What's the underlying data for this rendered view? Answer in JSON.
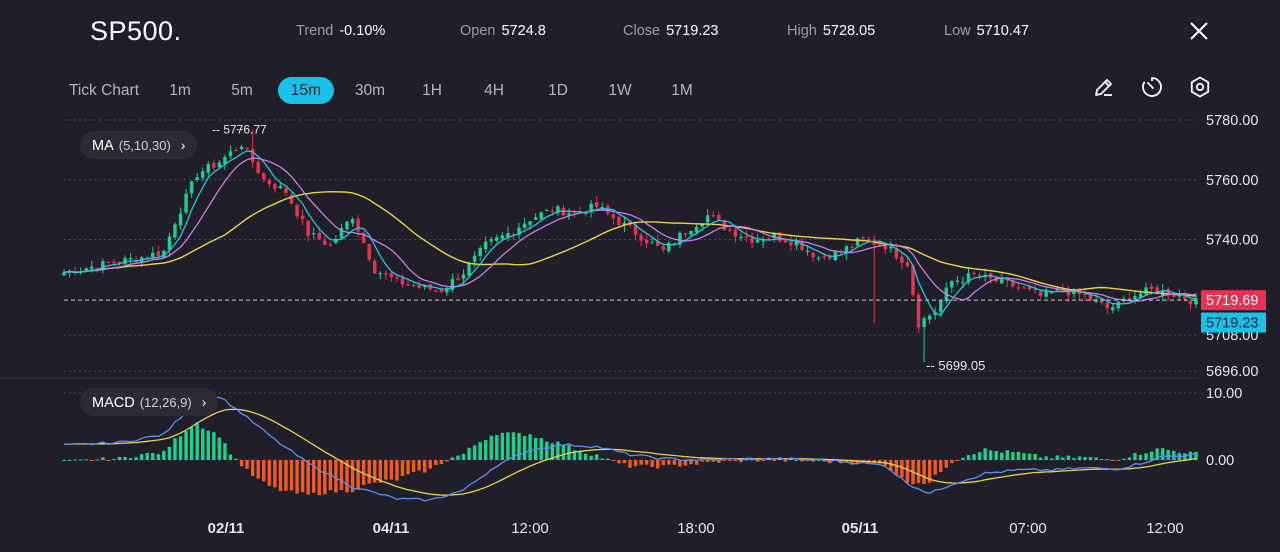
{
  "header": {
    "symbol": "SP500.",
    "stats": [
      {
        "label": "Trend",
        "value": "-0.10%"
      },
      {
        "label": "Open",
        "value": "5724.8"
      },
      {
        "label": "Close",
        "value": "5719.23"
      },
      {
        "label": "High",
        "value": "5728.05"
      },
      {
        "label": "Low",
        "value": "5710.47"
      }
    ],
    "close_icon": "close-icon"
  },
  "toolbar": {
    "timeframes": [
      "Tick Chart",
      "1m",
      "5m",
      "15m",
      "30m",
      "1H",
      "4H",
      "1D",
      "1W",
      "1M"
    ],
    "active": "15m",
    "tools": [
      "pencil-icon",
      "timer-icon",
      "settings-icon"
    ]
  },
  "indicators": {
    "ma": {
      "name": "MA",
      "params": "(5,10,30)"
    },
    "macd": {
      "name": "MACD",
      "params": "(12,26,9)"
    }
  },
  "colors": {
    "up": "#1fcf8f",
    "down": "#e8324f",
    "ma5": "#27c6e3",
    "ma10": "#c77de8",
    "ma30": "#e8d44c",
    "macd_line": "#5b8ff0",
    "signal_line": "#e8d44c",
    "hist_up": "#1fcf8f",
    "hist_down": "#f05a24",
    "accent": "#19c1e8"
  },
  "chart_data": {
    "type": "candlestick",
    "price_axis": {
      "ticks": [
        "5780.00",
        "5760.00",
        "5740.00",
        "5708.00",
        "5696.00"
      ],
      "tick_values": [
        5780,
        5760,
        5740,
        5708,
        5696
      ],
      "range": [
        5696,
        5780
      ]
    },
    "time_axis": {
      "labels": [
        "02/11",
        "04/11",
        "12:00",
        "18:00",
        "05/11",
        "07:00",
        "12:00"
      ],
      "bold": [
        true,
        true,
        false,
        false,
        true,
        false,
        false
      ]
    },
    "last_price": "5719.69",
    "close_price": "5719.23",
    "high_marker": "5776.77",
    "low_marker": "5699.05",
    "macd_axis": {
      "ticks": [
        "10.00",
        "0.00"
      ],
      "tick_values": [
        10,
        0
      ]
    },
    "series_waypoints": [
      [
        0,
        5729
      ],
      [
        8,
        5732
      ],
      [
        14,
        5734
      ],
      [
        18,
        5736
      ],
      [
        20,
        5746
      ],
      [
        24,
        5762
      ],
      [
        28,
        5766
      ],
      [
        32,
        5772
      ],
      [
        36,
        5760
      ],
      [
        40,
        5756
      ],
      [
        44,
        5742
      ],
      [
        48,
        5738
      ],
      [
        52,
        5748
      ],
      [
        56,
        5730
      ],
      [
        60,
        5726
      ],
      [
        64,
        5724
      ],
      [
        68,
        5723
      ],
      [
        72,
        5729
      ],
      [
        76,
        5738
      ],
      [
        80,
        5742
      ],
      [
        84,
        5747
      ],
      [
        88,
        5750
      ],
      [
        92,
        5749
      ],
      [
        96,
        5751
      ],
      [
        100,
        5746
      ],
      [
        104,
        5741
      ],
      [
        108,
        5736
      ],
      [
        112,
        5743
      ],
      [
        116,
        5748
      ],
      [
        120,
        5743
      ],
      [
        124,
        5740
      ],
      [
        128,
        5741
      ],
      [
        132,
        5739
      ],
      [
        136,
        5734
      ],
      [
        140,
        5736
      ],
      [
        144,
        5740
      ],
      [
        148,
        5738
      ],
      [
        152,
        5732
      ],
      [
        154,
        5712
      ],
      [
        157,
        5716
      ],
      [
        160,
        5726
      ],
      [
        164,
        5728
      ],
      [
        168,
        5726
      ],
      [
        172,
        5724
      ],
      [
        176,
        5721
      ],
      [
        180,
        5723
      ],
      [
        184,
        5721
      ],
      [
        188,
        5717
      ],
      [
        190,
        5718
      ],
      [
        192,
        5721
      ],
      [
        196,
        5723
      ],
      [
        200,
        5722
      ],
      [
        204,
        5719
      ]
    ],
    "macd_waypoints": [
      [
        0,
        2.2
      ],
      [
        10,
        2.6
      ],
      [
        18,
        3.8
      ],
      [
        24,
        9.0
      ],
      [
        28,
        9.5
      ],
      [
        32,
        7.0
      ],
      [
        38,
        3.0
      ],
      [
        44,
        -0.5
      ],
      [
        52,
        -4.0
      ],
      [
        60,
        -5.8
      ],
      [
        66,
        -6.0
      ],
      [
        72,
        -4.5
      ],
      [
        78,
        -0.8
      ],
      [
        84,
        1.5
      ],
      [
        90,
        2.3
      ],
      [
        96,
        2.0
      ],
      [
        102,
        0.8
      ],
      [
        108,
        0.2
      ],
      [
        114,
        0.0
      ],
      [
        120,
        0.1
      ],
      [
        128,
        0.2
      ],
      [
        136,
        0.0
      ],
      [
        140,
        -0.2
      ],
      [
        148,
        -0.8
      ],
      [
        152,
        -3.5
      ],
      [
        156,
        -5.0
      ],
      [
        160,
        -3.6
      ],
      [
        166,
        -2.0
      ],
      [
        172,
        -1.5
      ],
      [
        178,
        -1.5
      ],
      [
        184,
        -1.2
      ],
      [
        190,
        -1.3
      ],
      [
        194,
        -0.5
      ],
      [
        198,
        0.5
      ],
      [
        204,
        0.8
      ]
    ],
    "candle_count": 205
  }
}
